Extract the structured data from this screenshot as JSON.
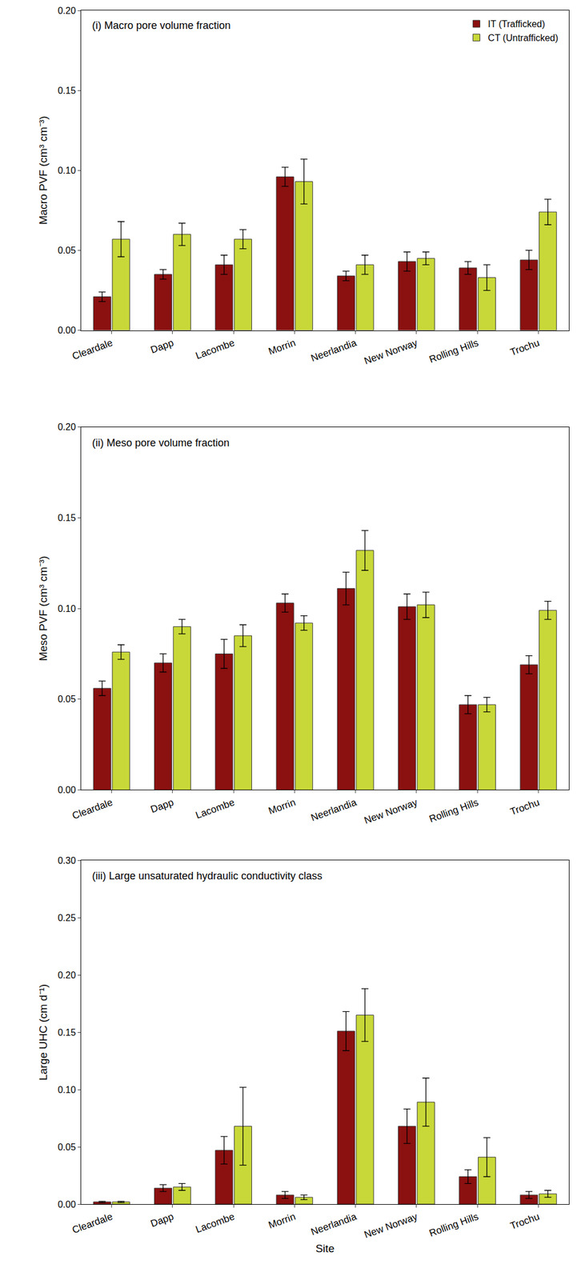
{
  "chart_data": [
    {
      "type": "bar",
      "title": "(i) Macro pore volume fraction",
      "y_label": "Macro PVF (cm³ cm⁻³)",
      "categories": [
        "Cleardale",
        "Dapp",
        "Lacombe",
        "Morrin",
        "Neerlandia",
        "New Norway",
        "Rolling Hills",
        "Trochu"
      ],
      "series": [
        {
          "name": "IT (Trafficked)",
          "color": "#8b1010",
          "values": [
            0.021,
            0.035,
            0.041,
            0.096,
            0.034,
            0.043,
            0.039,
            0.044
          ],
          "errors": [
            0.003,
            0.003,
            0.006,
            0.006,
            0.003,
            0.006,
            0.004,
            0.006
          ]
        },
        {
          "name": "CT (Untrafficked)",
          "color": "#c8d838",
          "values": [
            0.057,
            0.06,
            0.057,
            0.093,
            0.041,
            0.045,
            0.033,
            0.074
          ],
          "errors": [
            0.011,
            0.007,
            0.006,
            0.014,
            0.006,
            0.004,
            0.008,
            0.008
          ]
        }
      ],
      "ylim": [
        0,
        0.2
      ],
      "yticks": [
        {
          "value": 0,
          "label": "0.00"
        },
        {
          "value": 0.05,
          "label": "0.05"
        },
        {
          "value": 0.1,
          "label": "0.10"
        },
        {
          "value": 0.15,
          "label": "0.15"
        },
        {
          "value": 0.2,
          "label": "0.20"
        }
      ],
      "grid": false,
      "legend": "upper right"
    },
    {
      "type": "bar",
      "title": "(ii) Meso pore volume fraction",
      "y_label": "Meso PVF (cm³ cm⁻³)",
      "categories": [
        "Cleardale",
        "Dapp",
        "Lacombe",
        "Morrin",
        "Neerlandia",
        "New Norway",
        "Rolling Hills",
        "Trochu"
      ],
      "series": [
        {
          "name": "IT (Trafficked)",
          "color": "#8b1010",
          "values": [
            0.056,
            0.07,
            0.075,
            0.103,
            0.111,
            0.101,
            0.047,
            0.069
          ],
          "errors": [
            0.004,
            0.005,
            0.008,
            0.005,
            0.009,
            0.007,
            0.005,
            0.005
          ]
        },
        {
          "name": "CT (Untrafficked)",
          "color": "#c8d838",
          "values": [
            0.076,
            0.09,
            0.085,
            0.092,
            0.132,
            0.102,
            0.047,
            0.099
          ],
          "errors": [
            0.004,
            0.004,
            0.006,
            0.004,
            0.011,
            0.007,
            0.004,
            0.005
          ]
        }
      ],
      "ylim": [
        0,
        0.2
      ],
      "yticks": [
        {
          "value": 0,
          "label": "0.00"
        },
        {
          "value": 0.05,
          "label": "0.05"
        },
        {
          "value": 0.1,
          "label": "0.10"
        },
        {
          "value": 0.15,
          "label": "0.15"
        },
        {
          "value": 0.2,
          "label": "0.20"
        }
      ],
      "grid": false
    },
    {
      "type": "bar",
      "title": "(iii) Large unsaturated hydraulic conductivity class",
      "y_label": "Large UHC (cm d⁻¹)",
      "x_label": "Site",
      "categories": [
        "Cleardale",
        "Dapp",
        "Lacombe",
        "Morrin",
        "Neerlandia",
        "New Norway",
        "Rolling Hills",
        "Trochu"
      ],
      "series": [
        {
          "name": "IT (Trafficked)",
          "color": "#8b1010",
          "values": [
            0.002,
            0.014,
            0.047,
            0.008,
            0.151,
            0.068,
            0.024,
            0.008
          ],
          "errors": [
            0.0005,
            0.003,
            0.012,
            0.003,
            0.017,
            0.015,
            0.006,
            0.003
          ]
        },
        {
          "name": "CT (Untrafficked)",
          "color": "#c8d838",
          "values": [
            0.002,
            0.015,
            0.068,
            0.006,
            0.165,
            0.089,
            0.041,
            0.009
          ],
          "errors": [
            0.0005,
            0.003,
            0.034,
            0.002,
            0.023,
            0.021,
            0.017,
            0.003
          ]
        }
      ],
      "ylim": [
        0,
        0.3
      ],
      "yticks": [
        {
          "value": 0,
          "label": "0.00"
        },
        {
          "value": 0.05,
          "label": "0.05"
        },
        {
          "value": 0.1,
          "label": "0.10"
        },
        {
          "value": 0.15,
          "label": "0.15"
        },
        {
          "value": 0.2,
          "label": "0.20"
        },
        {
          "value": 0.25,
          "label": "0.25"
        },
        {
          "value": 0.3,
          "label": "0.30"
        }
      ],
      "grid": false
    }
  ]
}
